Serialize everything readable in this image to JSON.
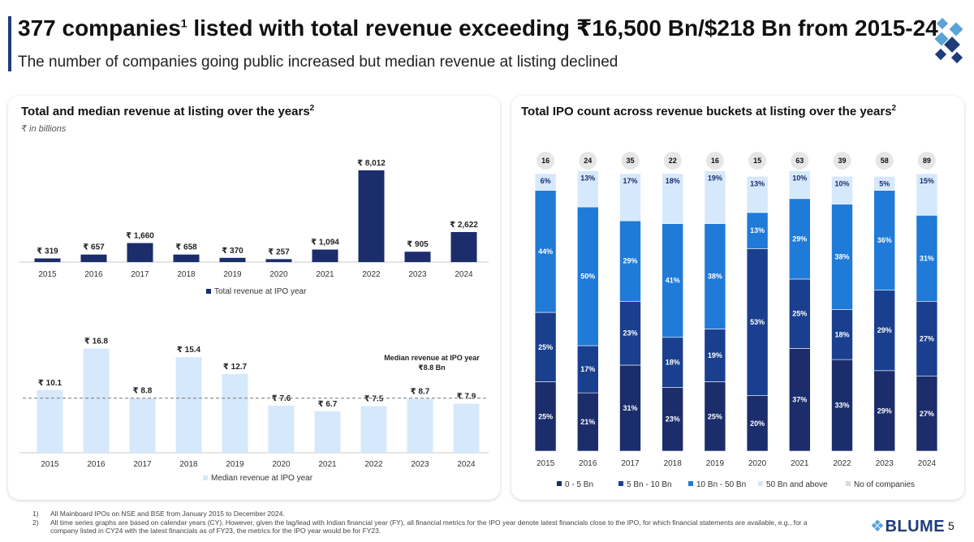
{
  "header": {
    "title_main": "377 companies",
    "title_sup": "1",
    "title_rest": " listed with total revenue exceeding ₹16,500 Bn/$218 Bn from 2015-24",
    "subtitle": "The number of companies going public increased but median revenue at listing declined"
  },
  "left_panel": {
    "title": "Total and median revenue at listing over the years",
    "title_sup": "2",
    "unit_note": "₹ in billions"
  },
  "right_panel": {
    "title": "Total IPO count across revenue buckets at listing over the years",
    "title_sup": "2"
  },
  "colors": {
    "navy": "#1b2d6b",
    "dark_blue": "#1a3f8f",
    "blue": "#1f7ad8",
    "mid_blue": "#2b8df0",
    "light_blue": "#d6e8fb",
    "brand": "#1f3c7a"
  },
  "chart_data": [
    {
      "type": "bar",
      "categories": [
        "2015",
        "2016",
        "2017",
        "2018",
        "2019",
        "2020",
        "2021",
        "2022",
        "2023",
        "2024"
      ],
      "series": [
        {
          "name": "Total revenue at IPO year",
          "values": [
            319,
            657,
            1660,
            658,
            370,
            257,
            1094,
            8012,
            905,
            2622
          ]
        }
      ],
      "data_labels": [
        "₹ 319",
        "₹ 657",
        "₹ 1,660",
        "₹ 658",
        "₹ 370",
        "₹ 257",
        "₹ 1,094",
        "₹ 8,012",
        "₹ 905",
        "₹ 2,622"
      ],
      "color": "#1b2d6b",
      "ylim": [
        0,
        8500
      ]
    },
    {
      "type": "bar",
      "categories": [
        "2015",
        "2016",
        "2017",
        "2018",
        "2019",
        "2020",
        "2021",
        "2022",
        "2023",
        "2024"
      ],
      "series": [
        {
          "name": "Median revenue at IPO year",
          "values": [
            10.1,
            16.8,
            8.8,
            15.4,
            12.7,
            7.6,
            6.7,
            7.5,
            8.7,
            7.9
          ]
        }
      ],
      "data_labels": [
        "₹ 10.1",
        "₹ 16.8",
        "₹ 8.8",
        "₹ 15.4",
        "₹ 12.7",
        "₹ 7.6",
        "₹ 6.7",
        "₹ 7.5",
        "₹ 8.7",
        "₹ 7.9"
      ],
      "color": "#d6e8fb",
      "ylim": [
        0,
        17
      ],
      "reference_line": {
        "value": 8.8,
        "label_line1": "Median revenue at IPO year",
        "label_line2": "₹8.8 Bn"
      }
    },
    {
      "type": "bar",
      "stacked": "percent",
      "categories": [
        "2015",
        "2016",
        "2017",
        "2018",
        "2019",
        "2020",
        "2021",
        "2022",
        "2023",
        "2024"
      ],
      "totals": [
        16,
        24,
        35,
        22,
        16,
        15,
        63,
        39,
        58,
        89
      ],
      "series": [
        {
          "name": "0 - 5 Bn",
          "values": [
            25,
            21,
            31,
            23,
            25,
            20,
            37,
            33,
            29,
            27
          ],
          "color": "#1b2d6b"
        },
        {
          "name": "5 Bn - 10 Bn",
          "values": [
            25,
            17,
            23,
            18,
            19,
            53,
            25,
            18,
            29,
            27
          ],
          "color": "#1a3f8f"
        },
        {
          "name": "10 Bn - 50 Bn",
          "values": [
            44,
            50,
            29,
            41,
            38,
            13,
            29,
            38,
            36,
            31
          ],
          "color": "#1f7ad8"
        },
        {
          "name": "50 Bn and above",
          "values": [
            6,
            13,
            17,
            18,
            19,
            13,
            10,
            10,
            5,
            15
          ],
          "color": "#d6e8fb"
        }
      ],
      "legend_extra": "No of companies",
      "legend_position": "bottom"
    }
  ],
  "footnotes": [
    {
      "num": "1)",
      "text": "All Mainboard IPOs on NSE and BSE from January 2015 to December 2024."
    },
    {
      "num": "2)",
      "text": "All time series graphs are based on calendar years (CY). However, given the lag/lead with Indian financial year (FY), all financial metrics for the IPO year denote latest financials close to the IPO, for which financial statements are available, e.g., for a company listed in CY24 with the latest financials as of FY23, the metrics for the IPO year would be for FY23."
    }
  ],
  "footer": {
    "brand": "BLUME",
    "page": "5"
  }
}
